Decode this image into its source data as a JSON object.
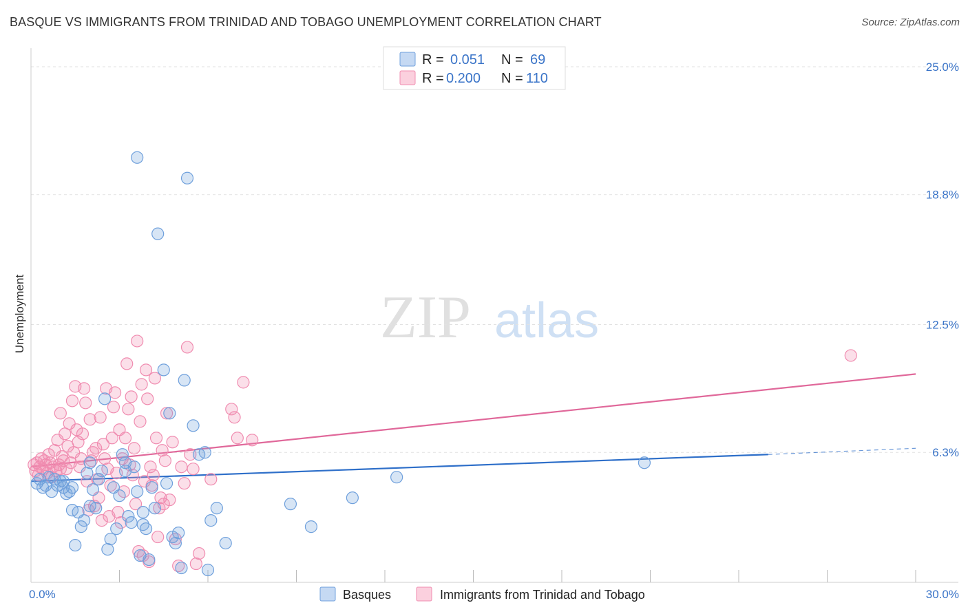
{
  "title": "BASQUE VS IMMIGRANTS FROM TRINIDAD AND TOBAGO UNEMPLOYMENT CORRELATION CHART",
  "source": "Source: ZipAtlas.com",
  "watermark": {
    "zip": "ZIP",
    "atlas": "atlas"
  },
  "legend_top": [
    {
      "r_label": "R =",
      "r_value": "0.051",
      "n_label": "N =",
      "n_value": "69",
      "color": "#6fa0dc"
    },
    {
      "r_label": "R =",
      "r_value": "0.200",
      "n_label": "N =",
      "n_value": "110",
      "color": "#f08cb0"
    }
  ],
  "legend_bottom": [
    {
      "label": "Basques",
      "color": "#6fa0dc"
    },
    {
      "label": "Immigrants from Trinidad and Tobago",
      "color": "#f08cb0"
    }
  ],
  "chart_data": {
    "type": "scatter",
    "ylabel": "Unemployment",
    "xlim": [
      0,
      30
    ],
    "ylim": [
      0,
      25.9
    ],
    "x_tick_labels": [
      "0.0%",
      "30.0%"
    ],
    "y_ticks": [
      6.3,
      12.5,
      18.8,
      25.0
    ],
    "y_tick_labels": [
      "6.3%",
      "12.5%",
      "18.8%",
      "25.0%"
    ],
    "grid": true,
    "series": [
      {
        "name": "Basques",
        "color": "#6fa0dc",
        "line_color": "#2e6fc9",
        "trend": {
          "x0": 0,
          "y0": 4.9,
          "x1": 25,
          "y1": 6.2,
          "dash_to_x": 30,
          "dash_to_y": 6.5
        },
        "points": [
          [
            0.2,
            4.8
          ],
          [
            0.3,
            5.0
          ],
          [
            0.4,
            4.6
          ],
          [
            0.5,
            4.7
          ],
          [
            0.6,
            5.1
          ],
          [
            0.7,
            4.4
          ],
          [
            0.8,
            5.0
          ],
          [
            0.9,
            4.7
          ],
          [
            1.0,
            4.9
          ],
          [
            1.1,
            4.6
          ],
          [
            1.2,
            4.3
          ],
          [
            1.3,
            4.4
          ],
          [
            1.4,
            3.5
          ],
          [
            1.5,
            1.8
          ],
          [
            1.6,
            3.4
          ],
          [
            1.7,
            2.7
          ],
          [
            1.8,
            3.0
          ],
          [
            1.9,
            5.3
          ],
          [
            2.0,
            5.8
          ],
          [
            2.1,
            4.5
          ],
          [
            2.2,
            3.6
          ],
          [
            2.3,
            5.0
          ],
          [
            2.4,
            5.4
          ],
          [
            2.5,
            8.9
          ],
          [
            2.6,
            1.6
          ],
          [
            2.7,
            2.1
          ],
          [
            2.8,
            4.6
          ],
          [
            2.9,
            2.6
          ],
          [
            3.0,
            4.2
          ],
          [
            3.1,
            6.2
          ],
          [
            3.2,
            5.8
          ],
          [
            3.3,
            3.2
          ],
          [
            3.4,
            2.9
          ],
          [
            3.5,
            5.6
          ],
          [
            3.2,
            5.4
          ],
          [
            3.6,
            4.4
          ],
          [
            3.8,
            3.4
          ],
          [
            3.9,
            2.6
          ],
          [
            4.0,
            1.1
          ],
          [
            3.7,
            1.3
          ],
          [
            3.6,
            20.6
          ],
          [
            3.8,
            2.8
          ],
          [
            4.1,
            4.6
          ],
          [
            4.2,
            3.6
          ],
          [
            4.3,
            16.9
          ],
          [
            4.5,
            10.3
          ],
          [
            4.6,
            4.8
          ],
          [
            4.7,
            8.2
          ],
          [
            4.8,
            2.2
          ],
          [
            4.9,
            1.9
          ],
          [
            5.0,
            2.4
          ],
          [
            5.1,
            0.7
          ],
          [
            5.2,
            9.8
          ],
          [
            5.3,
            19.6
          ],
          [
            5.5,
            7.6
          ],
          [
            5.7,
            6.2
          ],
          [
            5.9,
            6.3
          ],
          [
            6.0,
            0.6
          ],
          [
            6.1,
            3.0
          ],
          [
            6.3,
            3.6
          ],
          [
            6.6,
            1.9
          ],
          [
            8.8,
            3.8
          ],
          [
            9.5,
            2.7
          ],
          [
            10.9,
            4.1
          ],
          [
            12.4,
            5.1
          ],
          [
            20.8,
            5.8
          ],
          [
            1.1,
            4.9
          ],
          [
            2.0,
            3.7
          ],
          [
            1.4,
            4.6
          ]
        ]
      },
      {
        "name": "Immigrants from Trinidad and Tobago",
        "color": "#f08cb0",
        "line_color": "#e0689a",
        "trend": {
          "x0": 0,
          "y0": 5.6,
          "x1": 30,
          "y1": 10.1
        },
        "points": [
          [
            0.1,
            5.7
          ],
          [
            0.15,
            5.4
          ],
          [
            0.2,
            5.8
          ],
          [
            0.25,
            5.2
          ],
          [
            0.3,
            5.6
          ],
          [
            0.35,
            6.0
          ],
          [
            0.4,
            5.5
          ],
          [
            0.45,
            5.9
          ],
          [
            0.5,
            5.7
          ],
          [
            0.55,
            5.3
          ],
          [
            0.6,
            6.2
          ],
          [
            0.65,
            5.8
          ],
          [
            0.7,
            5.1
          ],
          [
            0.75,
            5.6
          ],
          [
            0.8,
            6.4
          ],
          [
            0.85,
            5.4
          ],
          [
            0.9,
            6.9
          ],
          [
            0.95,
            5.7
          ],
          [
            1.0,
            8.2
          ],
          [
            1.05,
            6.1
          ],
          [
            1.1,
            5.9
          ],
          [
            1.15,
            7.2
          ],
          [
            1.2,
            5.5
          ],
          [
            1.25,
            6.6
          ],
          [
            1.3,
            7.7
          ],
          [
            1.35,
            5.8
          ],
          [
            1.4,
            8.8
          ],
          [
            1.45,
            6.3
          ],
          [
            1.5,
            9.5
          ],
          [
            1.55,
            7.4
          ],
          [
            1.6,
            6.8
          ],
          [
            1.65,
            5.6
          ],
          [
            1.7,
            6.0
          ],
          [
            1.75,
            7.2
          ],
          [
            1.8,
            9.4
          ],
          [
            1.85,
            8.7
          ],
          [
            1.9,
            4.9
          ],
          [
            1.95,
            3.5
          ],
          [
            2.0,
            7.9
          ],
          [
            2.05,
            5.9
          ],
          [
            2.1,
            6.3
          ],
          [
            2.15,
            3.7
          ],
          [
            2.2,
            6.5
          ],
          [
            2.25,
            5.0
          ],
          [
            2.3,
            4.1
          ],
          [
            2.35,
            8.0
          ],
          [
            2.4,
            3.0
          ],
          [
            2.45,
            6.7
          ],
          [
            2.5,
            6.0
          ],
          [
            2.55,
            9.4
          ],
          [
            2.6,
            5.5
          ],
          [
            2.65,
            3.2
          ],
          [
            2.7,
            4.7
          ],
          [
            2.75,
            7.0
          ],
          [
            2.8,
            8.5
          ],
          [
            2.85,
            9.2
          ],
          [
            2.9,
            5.3
          ],
          [
            2.95,
            3.4
          ],
          [
            3.0,
            7.4
          ],
          [
            3.05,
            2.9
          ],
          [
            3.1,
            6.0
          ],
          [
            3.15,
            4.4
          ],
          [
            3.2,
            7.0
          ],
          [
            3.25,
            10.6
          ],
          [
            3.3,
            8.4
          ],
          [
            3.35,
            5.7
          ],
          [
            3.4,
            9.0
          ],
          [
            3.45,
            5.2
          ],
          [
            3.5,
            6.5
          ],
          [
            3.55,
            3.8
          ],
          [
            3.6,
            11.7
          ],
          [
            3.65,
            1.5
          ],
          [
            3.7,
            7.8
          ],
          [
            3.75,
            9.6
          ],
          [
            3.8,
            1.3
          ],
          [
            3.85,
            4.9
          ],
          [
            3.9,
            10.3
          ],
          [
            3.95,
            8.9
          ],
          [
            4.0,
            1.0
          ],
          [
            4.05,
            5.6
          ],
          [
            4.1,
            4.7
          ],
          [
            4.15,
            5.2
          ],
          [
            4.2,
            9.9
          ],
          [
            4.25,
            7.0
          ],
          [
            4.3,
            2.2
          ],
          [
            4.35,
            3.6
          ],
          [
            4.4,
            4.1
          ],
          [
            4.45,
            6.4
          ],
          [
            4.5,
            3.8
          ],
          [
            4.55,
            5.9
          ],
          [
            4.6,
            8.2
          ],
          [
            4.7,
            4.0
          ],
          [
            4.8,
            6.8
          ],
          [
            4.9,
            2.1
          ],
          [
            5.0,
            0.8
          ],
          [
            5.1,
            5.6
          ],
          [
            5.2,
            4.8
          ],
          [
            5.3,
            11.4
          ],
          [
            5.4,
            6.2
          ],
          [
            5.5,
            5.5
          ],
          [
            5.6,
            0.9
          ],
          [
            5.7,
            1.4
          ],
          [
            6.1,
            5.0
          ],
          [
            6.8,
            8.4
          ],
          [
            7.0,
            7.0
          ],
          [
            6.9,
            8.0
          ],
          [
            7.2,
            9.7
          ],
          [
            7.5,
            6.9
          ],
          [
            27.8,
            11.0
          ],
          [
            1.0,
            5.5
          ]
        ]
      }
    ]
  }
}
